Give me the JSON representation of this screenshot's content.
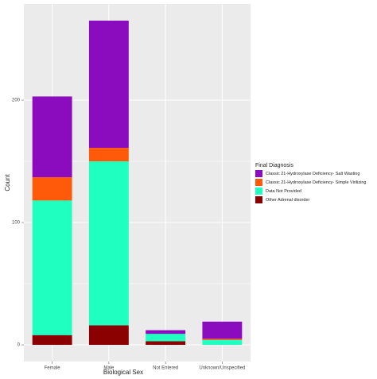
{
  "chart_data": {
    "type": "stacked_bar",
    "x_label": "Biological Sex",
    "y_label": "Count",
    "categories": [
      "Female",
      "Male",
      "Not Entered",
      "Unknown/Unspecified"
    ],
    "series": [
      {
        "name": "Other Adrenal disorder",
        "color": "#8b0000",
        "values": [
          8,
          16,
          3,
          0
        ]
      },
      {
        "name": "Data Not Provided",
        "color": "#1effc0",
        "values": [
          110,
          134,
          6,
          4
        ]
      },
      {
        "name": "Classic 21-Hydroxylase Deficiency- Simple Virilizing",
        "color": "#ff5a0a",
        "values": [
          19,
          11,
          0,
          1
        ]
      },
      {
        "name": "Classic 21-Hydroxylase Deficiency- Salt Wasting",
        "color": "#8b0bbf",
        "values": [
          66,
          104,
          3,
          14
        ]
      }
    ],
    "legend_title": "Final Diagnosis",
    "legend_order": [
      3,
      2,
      1,
      0
    ],
    "ylim": [
      -13.6,
      278.6
    ],
    "yticks": [
      0,
      100,
      200
    ],
    "grid": true
  }
}
